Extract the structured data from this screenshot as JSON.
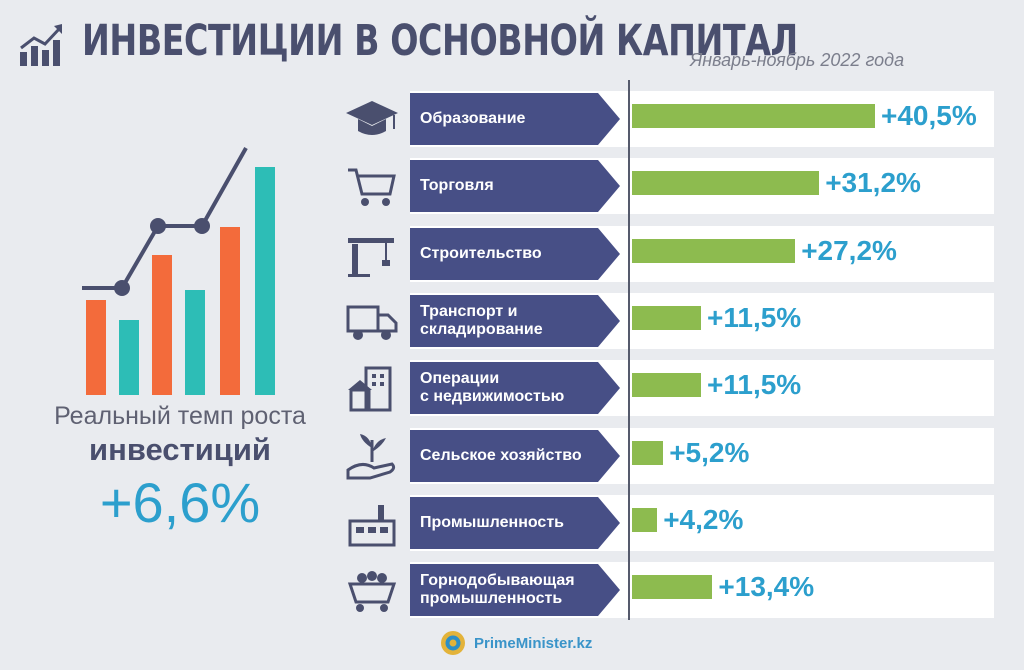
{
  "header": {
    "title": "ИНВЕСТИЦИИ В ОСНОВНОЙ КАПИТАЛ",
    "subtitle": "Январь-ноябрь 2022 года",
    "icon": "growth-chart-icon"
  },
  "summary": {
    "label": "Реальный темп роста",
    "label_strong": "инвестиций",
    "value": "+6,6%"
  },
  "colors": {
    "accent_blue": "#2c9fcd",
    "bar_green": "#8dbb4f",
    "arrow_navy": "#474f86",
    "text_dark": "#4a4f6e",
    "deco_orange": "#f36b3b",
    "deco_teal": "#2dbdb6"
  },
  "chart_data": {
    "type": "bar",
    "orientation": "horizontal",
    "categories": [
      "Образование",
      "Торговля",
      "Строительство",
      "Транспорт и складирование",
      "Операции с недвижимостью",
      "Сельское хозяйство",
      "Промышленность",
      "Горнодобывающая промышленность"
    ],
    "labels": [
      "Образование",
      "Торговля",
      "Строительство",
      "Транспорт и\nскладирование",
      "Операции\nс недвижимостью",
      "Сельское хозяйство",
      "Промышленность",
      "Горнодобывающая\nпромышленность"
    ],
    "values": [
      40.5,
      31.2,
      27.2,
      11.5,
      11.5,
      5.2,
      4.2,
      13.4
    ],
    "value_labels": [
      "+40,5%",
      "+31,2%",
      "+27,2%",
      "+11,5%",
      "+11,5%",
      "+5,2%",
      "+4,2%",
      "+13,4%"
    ],
    "icons": [
      "graduation-cap-icon",
      "shopping-cart-icon",
      "crane-icon",
      "delivery-truck-icon",
      "buildings-icon",
      "sprout-hand-icon",
      "factory-icon",
      "mine-cart-icon"
    ],
    "xlim": [
      0,
      42
    ],
    "grid": false,
    "legend": "none"
  },
  "footer": {
    "site": "PrimeMinister.kz",
    "emblem": "kazakhstan-emblem-icon"
  }
}
